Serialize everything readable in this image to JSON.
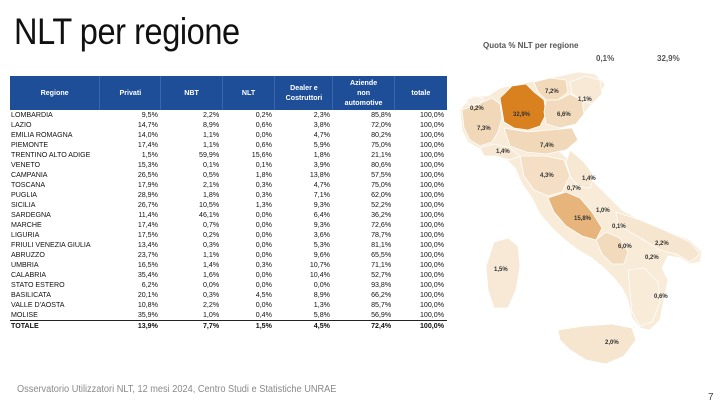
{
  "title": "NLT per regione",
  "table": {
    "headers": [
      "Regione",
      "Privati",
      "NBT",
      "NLT",
      "Dealer e\nCostruttori",
      "Aziende\nnon\nautomotive",
      "totale"
    ],
    "rows": [
      [
        "LOMBARDIA",
        "9,5%",
        "2,2%",
        "0,2%",
        "2,3%",
        "85,8%",
        "100,0%"
      ],
      [
        "LAZIO",
        "14,7%",
        "8,9%",
        "0,6%",
        "3,8%",
        "72,0%",
        "100,0%"
      ],
      [
        "EMILIA ROMAGNA",
        "14,0%",
        "1,1%",
        "0,0%",
        "4,7%",
        "80,2%",
        "100,0%"
      ],
      [
        "PIEMONTE",
        "17,4%",
        "1,1%",
        "0,6%",
        "5,9%",
        "75,0%",
        "100,0%"
      ],
      [
        "TRENTINO ALTO ADIGE",
        "1,5%",
        "59,9%",
        "15,6%",
        "1,8%",
        "21,1%",
        "100,0%"
      ],
      [
        "VENETO",
        "15,3%",
        "0,1%",
        "0,1%",
        "3,9%",
        "80,6%",
        "100,0%"
      ],
      [
        "CAMPANIA",
        "26,5%",
        "0,5%",
        "1,8%",
        "13,8%",
        "57,5%",
        "100,0%"
      ],
      [
        "TOSCANA",
        "17,9%",
        "2,1%",
        "0,3%",
        "4,7%",
        "75,0%",
        "100,0%"
      ],
      [
        "PUGLIA",
        "28,9%",
        "1,8%",
        "0,3%",
        "7,1%",
        "62,0%",
        "100,0%"
      ],
      [
        "SICILIA",
        "26,7%",
        "10,5%",
        "1,3%",
        "9,3%",
        "52,2%",
        "100,0%"
      ],
      [
        "SARDEGNA",
        "11,4%",
        "46,1%",
        "0,0%",
        "6,4%",
        "36,2%",
        "100,0%"
      ],
      [
        "MARCHE",
        "17,4%",
        "0,7%",
        "0,0%",
        "9,3%",
        "72,6%",
        "100,0%"
      ],
      [
        "LIGURIA",
        "17,5%",
        "0,2%",
        "0,0%",
        "3,6%",
        "78,7%",
        "100,0%"
      ],
      [
        "FRIULI VENEZIA GIULIA",
        "13,4%",
        "0,3%",
        "0,0%",
        "5,3%",
        "81,1%",
        "100,0%"
      ],
      [
        "ABRUZZO",
        "23,7%",
        "1,1%",
        "0,0%",
        "9,6%",
        "65,5%",
        "100,0%"
      ],
      [
        "UMBRIA",
        "16,5%",
        "1,4%",
        "0,3%",
        "10,7%",
        "71,1%",
        "100,0%"
      ],
      [
        "CALABRIA",
        "35,4%",
        "1,6%",
        "0,0%",
        "10,4%",
        "52,7%",
        "100,0%"
      ],
      [
        "STATO ESTERO",
        "6,2%",
        "0,0%",
        "0,0%",
        "0,0%",
        "93,8%",
        "100,0%"
      ],
      [
        "BASILICATA",
        "20,1%",
        "0,3%",
        "4,5%",
        "8,9%",
        "66,2%",
        "100,0%"
      ],
      [
        "VALLE D'AOSTA",
        "10,8%",
        "2,2%",
        "0,0%",
        "1,3%",
        "85,7%",
        "100,0%"
      ],
      [
        "MOLISE",
        "35,9%",
        "1,0%",
        "0,4%",
        "5,8%",
        "56,9%",
        "100,0%"
      ]
    ],
    "total": [
      "TOTALE",
      "13,9%",
      "7,7%",
      "1,5%",
      "4,5%",
      "72,4%",
      "100,0%"
    ]
  },
  "map": {
    "title": "Quota % NLT per regione",
    "legend_min": "0,1%",
    "legend_max": "32,9%",
    "colors": {
      "low": "#f8ebd8",
      "high": "#d9801f",
      "mid": "#ecc89a"
    },
    "labels": {
      "valle_aosta": "0,2%",
      "piemonte": "7,3%",
      "lombardia": "32,9%",
      "trentino": "7,2%",
      "veneto": "6,6%",
      "friuli": "1,1%",
      "liguria": "1,4%",
      "emilia": "7,4%",
      "toscana": "4,3%",
      "umbria": "0,7%",
      "marche": "1,4%",
      "lazio": "15,8%",
      "abruzzo": "1,0%",
      "molise": "0,1%",
      "campania": "6,0%",
      "puglia": "2,2%",
      "basilicata": "0,2%",
      "calabria": "0,6%",
      "sardegna": "1,5%",
      "sicilia": "2,0%"
    }
  },
  "footer": "Osservatorio Utilizzatori NLT, 12 mesi 2024, Centro Studi e Statistiche UNRAE",
  "page_number": "7"
}
